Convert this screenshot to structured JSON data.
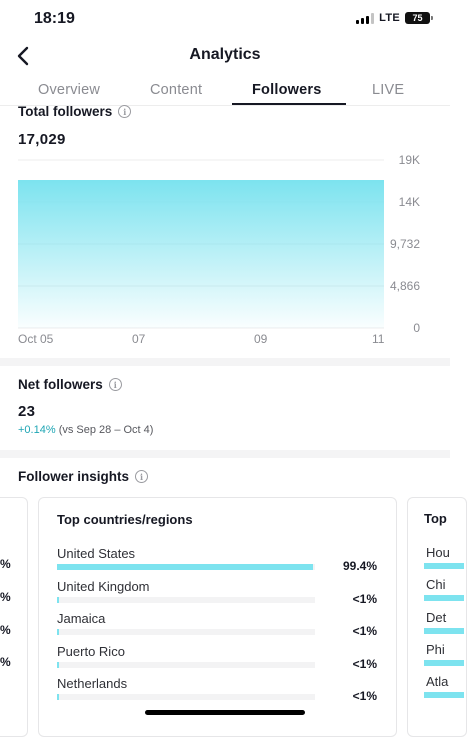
{
  "status_bar": {
    "time": "18:19",
    "network": "LTE",
    "battery": "75"
  },
  "header": {
    "title": "Analytics"
  },
  "tabs": [
    {
      "label": "Overview",
      "active": false
    },
    {
      "label": "Content",
      "active": false
    },
    {
      "label": "Followers",
      "active": true
    },
    {
      "label": "LIVE",
      "active": false
    }
  ],
  "total_followers": {
    "title": "Total followers",
    "value": "17,029"
  },
  "chart_data": {
    "type": "area",
    "x_labels": [
      "Oct 05",
      "07",
      "09",
      "11"
    ],
    "y_ticks": [
      "19K",
      "14K",
      "9,732",
      "4,866",
      "0"
    ],
    "series": [
      {
        "values": [
          17029,
          17029,
          17029,
          17029,
          17029,
          17029,
          17029
        ]
      }
    ],
    "ylim": [
      0,
      19465
    ],
    "color": "#7de3ef"
  },
  "net_followers": {
    "title": "Net followers",
    "value": "23",
    "change": "+0.14%",
    "comparison": "(vs Sep 28 – Oct 4)"
  },
  "follower_insights": {
    "title": "Follower insights",
    "left_card_pcts": [
      "%",
      "%",
      "%",
      "%"
    ],
    "countries_card": {
      "title": "Top countries/regions",
      "items": [
        {
          "name": "United States",
          "pct": "99.4%",
          "share": 0.994
        },
        {
          "name": "United Kingdom",
          "pct": "<1%",
          "share": 0.004
        },
        {
          "name": "Jamaica",
          "pct": "<1%",
          "share": 0.002
        },
        {
          "name": "Puerto Rico",
          "pct": "<1%",
          "share": 0.002
        },
        {
          "name": "Netherlands",
          "pct": "<1%",
          "share": 0.002
        }
      ]
    },
    "right_card": {
      "title": "Top",
      "items": [
        "Hou",
        "Chi",
        "Det",
        "Phi",
        "Atla"
      ]
    }
  },
  "colors": {
    "accent": "#7de3ef",
    "positive": "#1ea5b4",
    "text": "#161823",
    "muted": "#8a8b91"
  }
}
